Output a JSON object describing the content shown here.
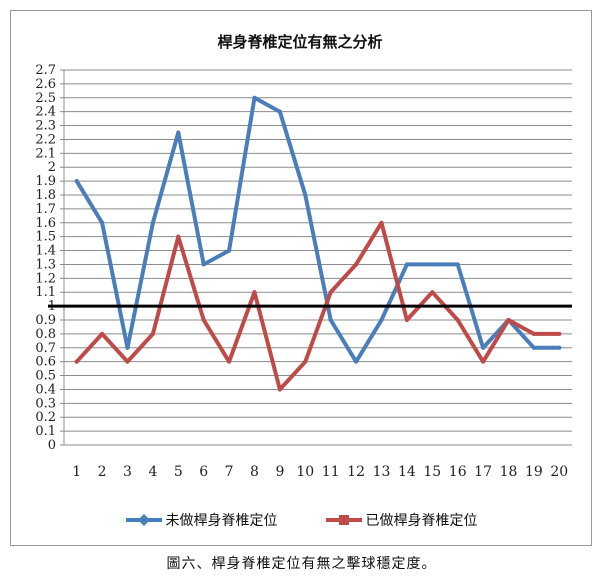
{
  "chart_data": {
    "type": "line",
    "title": "桿身脊椎定位有無之分析",
    "x": [
      1,
      2,
      3,
      4,
      5,
      6,
      7,
      8,
      9,
      10,
      11,
      12,
      13,
      14,
      15,
      16,
      17,
      18,
      19,
      20
    ],
    "ylim": [
      0,
      2.7
    ],
    "yticks": [
      "0",
      "0.1",
      "0.2",
      "0.3",
      "0.4",
      "0.5",
      "0.6",
      "0.7",
      "0.8",
      "0.9",
      "1",
      "1.1",
      "1.2",
      "1.3",
      "1.4",
      "1.5",
      "1.6",
      "1.7",
      "1.8",
      "1.9",
      "2",
      "2.1",
      "2.2",
      "2.3",
      "2.4",
      "2.5",
      "2.6",
      "2.7"
    ],
    "reference_line": 1.0,
    "series": [
      {
        "name": "未做桿身脊椎定位",
        "color": "#4a7ebb",
        "marker": "diamond",
        "values": [
          1.9,
          1.6,
          0.7,
          1.6,
          2.25,
          1.3,
          1.4,
          2.5,
          2.4,
          1.8,
          0.9,
          0.6,
          0.9,
          1.3,
          1.3,
          1.3,
          0.7,
          0.9,
          0.7,
          0.7
        ]
      },
      {
        "name": "已做桿身脊椎定位",
        "color": "#be4b48",
        "marker": "square",
        "values": [
          0.6,
          0.8,
          0.6,
          0.8,
          1.5,
          0.9,
          0.6,
          1.1,
          0.4,
          0.6,
          1.1,
          1.3,
          1.6,
          0.9,
          1.1,
          0.9,
          0.6,
          0.9,
          0.8,
          0.8
        ]
      }
    ]
  },
  "caption": "圖六、桿身脊椎定位有無之擊球穩定度。"
}
